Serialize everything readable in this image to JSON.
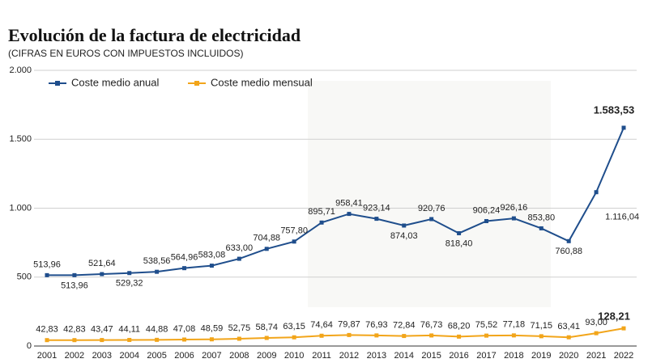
{
  "chart_data": {
    "type": "line",
    "title": "Evolución de la factura de electricidad",
    "subtitle": "(CIFRAS EN EUROS CON IMPUESTOS INCLUIDOS)",
    "categories": [
      "2001",
      "2002",
      "2003",
      "2004",
      "2005",
      "2006",
      "2007",
      "2008",
      "2009",
      "2010",
      "2011",
      "2012",
      "2013",
      "2014",
      "2015",
      "2016",
      "2017",
      "2018",
      "2019",
      "2020",
      "2021",
      "2022"
    ],
    "ylim": [
      0,
      2000
    ],
    "yticks": [
      0,
      500,
      {
        "value": 1000,
        "label": "1.000"
      },
      {
        "value": 1500,
        "label": "1.500"
      },
      {
        "value": 2000,
        "label": "2.000"
      }
    ],
    "grid": true,
    "legend": "top-left",
    "series": [
      {
        "name": "Coste medio anual",
        "color": "#1f4e8c",
        "values": [
          513.96,
          513.96,
          521.64,
          529.32,
          538.56,
          564.96,
          583.08,
          633.0,
          704.88,
          757.8,
          895.71,
          958.41,
          923.14,
          874.03,
          920.76,
          818.4,
          906.24,
          926.16,
          853.8,
          760.88,
          1116.04,
          1583.53
        ],
        "value_labels": [
          "513,96",
          "513,96",
          "521,64",
          "529,32",
          "538,56",
          "564,96",
          "583,08",
          "633,00",
          "704,88",
          "757,80",
          "895,71",
          "958,41",
          "923,14",
          "874,03",
          "920,76",
          "818,40",
          "906,24",
          "926,16",
          "853,80",
          "760,88",
          "1.116,04",
          "1.583,53"
        ]
      },
      {
        "name": "Coste medio mensual",
        "color": "#f2a51a",
        "values": [
          42.83,
          42.83,
          43.47,
          44.11,
          44.88,
          47.08,
          48.59,
          52.75,
          58.74,
          63.15,
          74.64,
          79.87,
          76.93,
          72.84,
          76.73,
          68.2,
          75.52,
          77.18,
          71.15,
          63.41,
          93.0,
          128.21
        ],
        "value_labels": [
          "42,83",
          "42,83",
          "43,47",
          "44,11",
          "44,88",
          "47,08",
          "48,59",
          "52,75",
          "58,74",
          "63,15",
          "74,64",
          "79,87",
          "76,93",
          "72,84",
          "76,73",
          "68,20",
          "75,52",
          "77,18",
          "71,15",
          "63,41",
          "93,00",
          "128,21"
        ]
      }
    ]
  }
}
